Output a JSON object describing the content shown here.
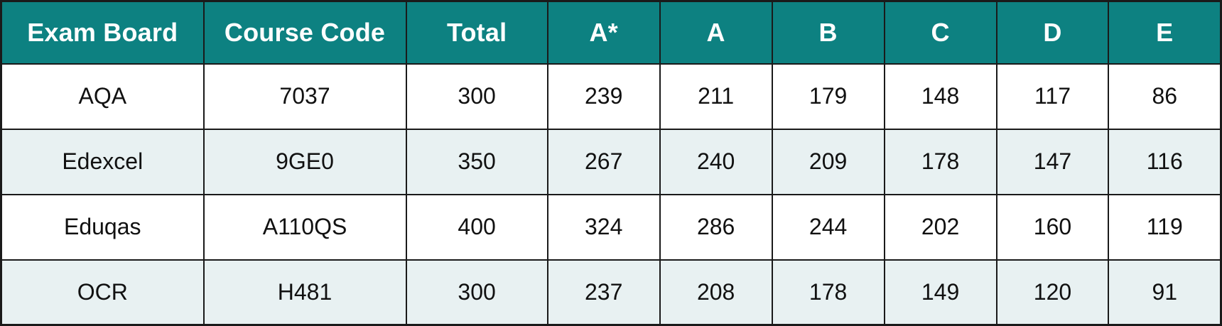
{
  "title": "Exam board grade boundaries table",
  "colors": {
    "header_background": "#0d8181",
    "header_text": "#ffffff",
    "row_background": "#ffffff",
    "row_alternate_background": "#e8f1f2",
    "grid_border": "#1a1a1a",
    "body_text": "#111111"
  },
  "chart_data": {
    "type": "table",
    "columns": [
      "Exam Board",
      "Course Code",
      "Total",
      "A*",
      "A",
      "B",
      "C",
      "D",
      "E"
    ],
    "rows": [
      [
        "AQA",
        "7037",
        "300",
        "239",
        "211",
        "179",
        "148",
        "117",
        "86"
      ],
      [
        "Edexcel",
        "9GE0",
        "350",
        "267",
        "240",
        "209",
        "178",
        "147",
        "116"
      ],
      [
        "Eduqas",
        "A110QS",
        "400",
        "324",
        "286",
        "244",
        "202",
        "160",
        "119"
      ],
      [
        "OCR",
        "H481",
        "300",
        "237",
        "208",
        "178",
        "149",
        "120",
        "91"
      ]
    ],
    "layout": {
      "grid": "on",
      "header_style": "teal band, bold white text",
      "row_striping": "white / pale blue-grey alternating"
    }
  }
}
